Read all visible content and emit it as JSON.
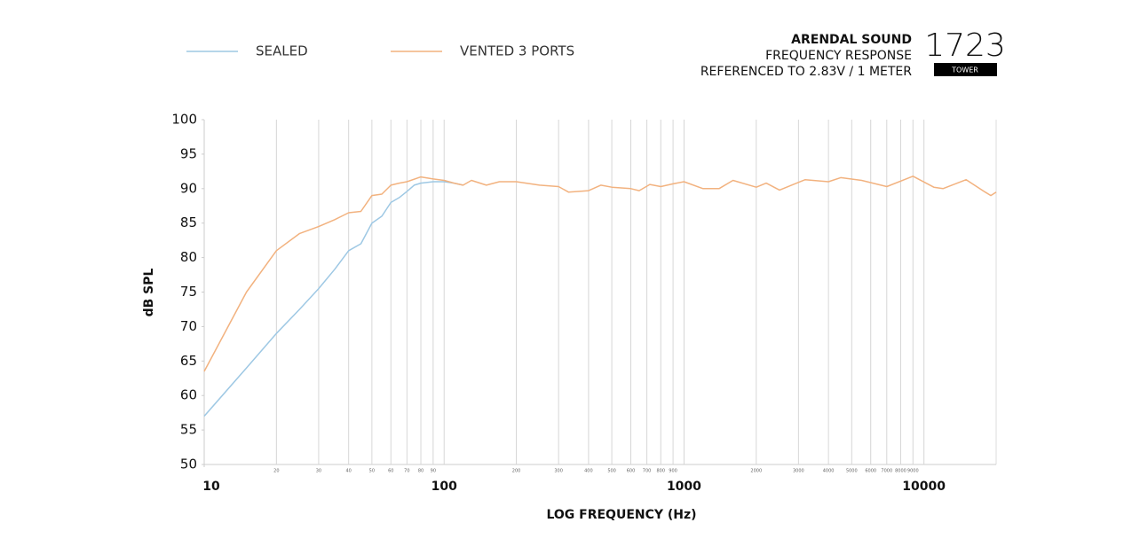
{
  "chart_data": {
    "type": "line",
    "title": "ARENDAL SOUND",
    "subtitle": "FREQUENCY RESPONSE",
    "note": "REFERENCED TO 2.83V / 1 METER",
    "model": "1723",
    "variant": "TOWER",
    "x_label": "LOG FREQUENCY (Hz)",
    "y_label": "dB SPL",
    "x_log": true,
    "xlim": [
      10,
      20000
    ],
    "ylim": [
      50,
      100
    ],
    "yticks": [
      50,
      55,
      60,
      65,
      70,
      75,
      80,
      85,
      90,
      95,
      100
    ],
    "xticks": [
      10,
      20,
      30,
      40,
      50,
      60,
      70,
      80,
      90,
      100,
      200,
      300,
      400,
      500,
      600,
      700,
      800,
      900,
      1000,
      2000,
      3000,
      4000,
      5000,
      6000,
      7000,
      8000,
      9000,
      10000
    ],
    "grid": true,
    "series": [
      {
        "name": "SEALED",
        "color": "#9ec8e4",
        "x": [
          10,
          15,
          20,
          25,
          30,
          35,
          40,
          45,
          50,
          55,
          60,
          65,
          70,
          75,
          80,
          90,
          100,
          110,
          120
        ],
        "values": [
          57,
          64,
          69,
          72.5,
          75.5,
          78.3,
          81,
          82,
          85,
          86,
          88,
          88.7,
          89.6,
          90.5,
          90.8,
          91,
          91,
          90.8,
          90.5
        ]
      },
      {
        "name": "VENTED 3 PORTS",
        "color": "#f2b27f",
        "x": [
          10,
          15,
          20,
          25,
          30,
          35,
          40,
          45,
          50,
          55,
          60,
          65,
          70,
          80,
          90,
          100,
          110,
          120,
          130,
          150,
          170,
          200,
          250,
          300,
          330,
          400,
          450,
          500,
          600,
          650,
          720,
          800,
          900,
          1000,
          1200,
          1400,
          1600,
          2000,
          2200,
          2500,
          3200,
          4000,
          4500,
          5500,
          7000,
          9000,
          11000,
          12000,
          15000,
          18000,
          19000,
          20000
        ],
        "values": [
          63.5,
          75,
          81,
          83.5,
          84.5,
          85.5,
          86.5,
          86.7,
          89,
          89.2,
          90.5,
          90.8,
          91,
          91.7,
          91.4,
          91.2,
          90.8,
          90.5,
          91.2,
          90.5,
          91,
          91,
          90.5,
          90.3,
          89.5,
          89.7,
          90.5,
          90.2,
          90,
          89.7,
          90.6,
          90.3,
          90.7,
          91,
          90,
          90,
          91.2,
          90.2,
          90.8,
          89.8,
          91.3,
          91,
          91.6,
          91.2,
          90.3,
          91.8,
          90.2,
          90,
          91.3,
          89.5,
          89,
          89.5
        ]
      }
    ]
  }
}
